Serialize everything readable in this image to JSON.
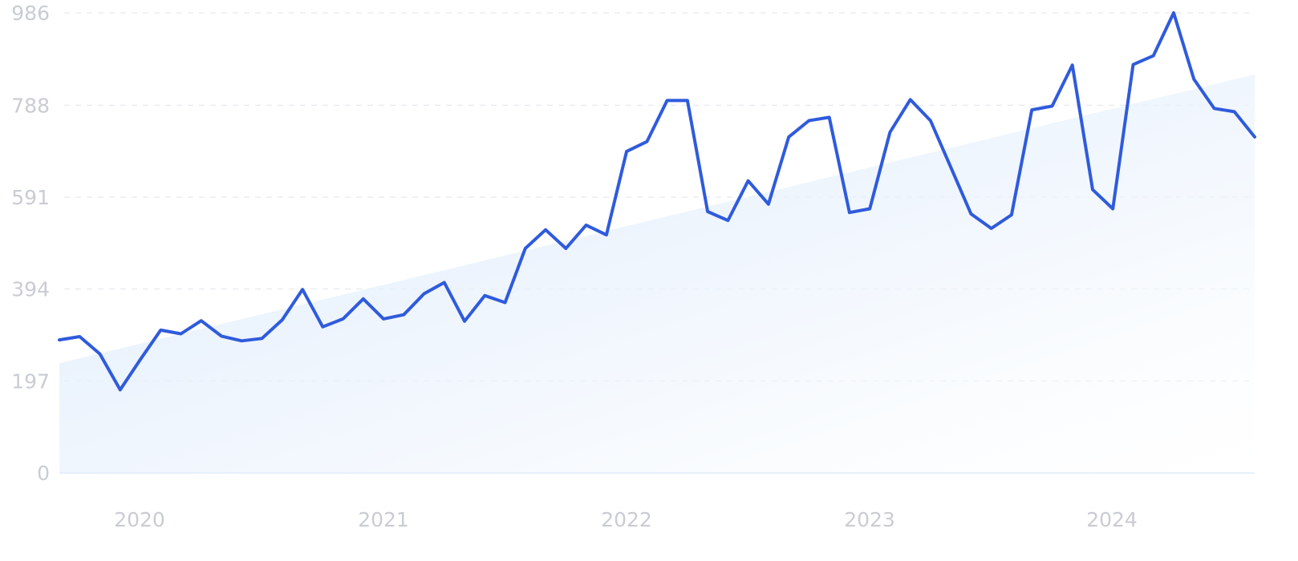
{
  "chart_data": {
    "type": "line",
    "title": "",
    "xlabel": "",
    "ylabel": "",
    "x_ticks": [
      "2020",
      "2021",
      "2022",
      "2023",
      "2024"
    ],
    "y_ticks": [
      "0",
      "197",
      "394",
      "591",
      "788",
      "986"
    ],
    "ylim": [
      0,
      986
    ],
    "grid": true,
    "series": [
      {
        "values": [
          285,
          292,
          255,
          178,
          243,
          306,
          298,
          326,
          293,
          283,
          288,
          328,
          393,
          313,
          330,
          373,
          330,
          339,
          384,
          408,
          325,
          380,
          365,
          481,
          521,
          481,
          531,
          510,
          689,
          710,
          798,
          798,
          560,
          541,
          626,
          576,
          720,
          755,
          762,
          558,
          566,
          730,
          800,
          755,
          655,
          555,
          524,
          553,
          778,
          786,
          874,
          607,
          566,
          875,
          894,
          986,
          844,
          781,
          774,
          720
        ],
        "trend": [
          235,
          854
        ]
      }
    ]
  }
}
